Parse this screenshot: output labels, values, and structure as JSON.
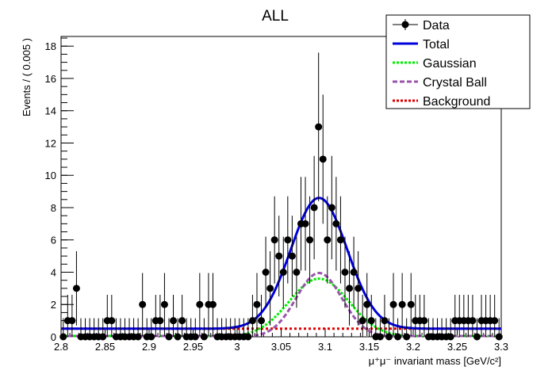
{
  "chart_data": {
    "type": "scatter",
    "title": "ALL",
    "xlabel": "μ⁺μ⁻ invariant mass [GeV/c²]",
    "ylabel": "Events / ( 0.005 )",
    "xlim": [
      2.8,
      3.3
    ],
    "ylim": [
      0,
      18.6
    ],
    "x_ticks": [
      "2.8",
      "2.85",
      "2.9",
      "2.95",
      "3",
      "3.05",
      "3.1",
      "3.15",
      "3.2",
      "3.25",
      "3.3"
    ],
    "y_ticks": [
      "0",
      "2",
      "4",
      "6",
      "8",
      "10",
      "12",
      "14",
      "16",
      "18"
    ],
    "grid": false,
    "legend_position": "top-right",
    "legend": [
      {
        "label": "Data",
        "color": "#000000",
        "style": "marker"
      },
      {
        "label": "Total",
        "color": "#0000dd",
        "style": "solid"
      },
      {
        "label": "Gaussian",
        "color": "#00ee00",
        "style": "dotted"
      },
      {
        "label": "Crystal Ball",
        "color": "#9955aa",
        "style": "dashed"
      },
      {
        "label": "Background",
        "color": "#dd0000",
        "style": "dotted"
      }
    ],
    "series": [
      {
        "name": "Data",
        "x": [
          2.8025,
          2.8075,
          2.8125,
          2.8175,
          2.8225,
          2.8275,
          2.8325,
          2.8375,
          2.8425,
          2.8475,
          2.8525,
          2.8575,
          2.8625,
          2.8675,
          2.8725,
          2.8775,
          2.8825,
          2.8875,
          2.8925,
          2.8975,
          2.9025,
          2.9075,
          2.9125,
          2.9175,
          2.9225,
          2.9275,
          2.9325,
          2.9375,
          2.9425,
          2.9475,
          2.9525,
          2.9575,
          2.9625,
          2.9675,
          2.9725,
          2.9775,
          2.9825,
          2.9875,
          2.9925,
          2.9975,
          3.0025,
          3.0075,
          3.0125,
          3.0175,
          3.0225,
          3.0275,
          3.0325,
          3.0375,
          3.0425,
          3.0475,
          3.0525,
          3.0575,
          3.0625,
          3.0675,
          3.0725,
          3.0775,
          3.0825,
          3.0875,
          3.0925,
          3.0975,
          3.1025,
          3.1075,
          3.1125,
          3.1175,
          3.1225,
          3.1275,
          3.1325,
          3.1375,
          3.1425,
          3.1475,
          3.1525,
          3.1575,
          3.1625,
          3.1675,
          3.1725,
          3.1775,
          3.1825,
          3.1875,
          3.1925,
          3.1975,
          3.2025,
          3.2075,
          3.2125,
          3.2175,
          3.2225,
          3.2275,
          3.2325,
          3.2375,
          3.2425,
          3.2475,
          3.2525,
          3.2575,
          3.2625,
          3.2675,
          3.2725,
          3.2775,
          3.2825,
          3.2875,
          3.2925,
          3.2975
        ],
        "y": [
          0,
          1,
          1,
          3,
          0,
          0,
          0,
          0,
          0,
          0,
          1,
          1,
          0,
          0,
          0,
          0,
          0,
          0,
          2,
          0,
          0,
          1,
          1,
          2,
          0,
          1,
          0,
          1,
          0,
          0,
          0,
          2,
          0,
          2,
          2,
          0,
          0,
          0,
          0,
          0,
          0,
          0,
          0,
          1,
          2,
          1,
          4,
          3,
          6,
          5,
          4,
          6,
          5,
          4,
          7,
          7,
          6,
          8,
          13,
          11,
          6,
          8,
          7,
          6,
          4,
          3,
          4,
          3,
          1,
          2,
          1,
          0,
          0,
          1,
          0,
          2,
          0,
          2,
          0,
          2,
          1,
          1,
          1,
          0,
          0,
          0,
          0,
          0,
          0,
          1,
          1,
          1,
          1,
          1,
          0,
          1,
          1,
          1,
          1,
          0
        ],
        "error": [
          1.15,
          1.6,
          1.6,
          2.3,
          1.15,
          1.15,
          1.15,
          1.15,
          1.15,
          1.15,
          1.6,
          1.6,
          1.15,
          1.15,
          1.15,
          1.15,
          1.15,
          1.15,
          1.95,
          1.15,
          1.15,
          1.6,
          1.6,
          1.95,
          1.15,
          1.6,
          1.15,
          1.6,
          1.15,
          1.15,
          1.15,
          1.95,
          1.15,
          1.95,
          1.95,
          1.15,
          1.15,
          1.15,
          1.15,
          1.15,
          1.15,
          1.15,
          1.15,
          1.6,
          1.95,
          1.6,
          2.2,
          2.3,
          2.7,
          2.5,
          2.2,
          2.7,
          2.5,
          2.2,
          2.9,
          2.9,
          2.7,
          3.2,
          4.6,
          4.0,
          2.7,
          3.2,
          2.9,
          2.7,
          2.2,
          2.3,
          2.2,
          2.3,
          1.6,
          1.95,
          1.6,
          1.15,
          1.15,
          1.6,
          1.15,
          1.95,
          1.15,
          1.95,
          1.15,
          1.95,
          1.6,
          1.6,
          1.6,
          1.15,
          1.15,
          1.15,
          1.15,
          1.15,
          1.15,
          1.6,
          1.6,
          1.6,
          1.6,
          1.6,
          1.15,
          1.6,
          1.6,
          1.6,
          1.6,
          1.15
        ]
      },
      {
        "name": "Total",
        "model": "gauss+cb+bkg",
        "mean": 3.093,
        "sigma": 0.032,
        "peak": 8.1,
        "baseline": 0.5
      },
      {
        "name": "Gaussian",
        "model": "gauss",
        "mean": 3.093,
        "sigma": 0.034,
        "peak": 3.6
      },
      {
        "name": "Crystal Ball",
        "model": "cb",
        "mean": 3.093,
        "sigma": 0.026,
        "peak": 3.95
      },
      {
        "name": "Background",
        "model": "flat",
        "value": 0.5
      }
    ]
  }
}
